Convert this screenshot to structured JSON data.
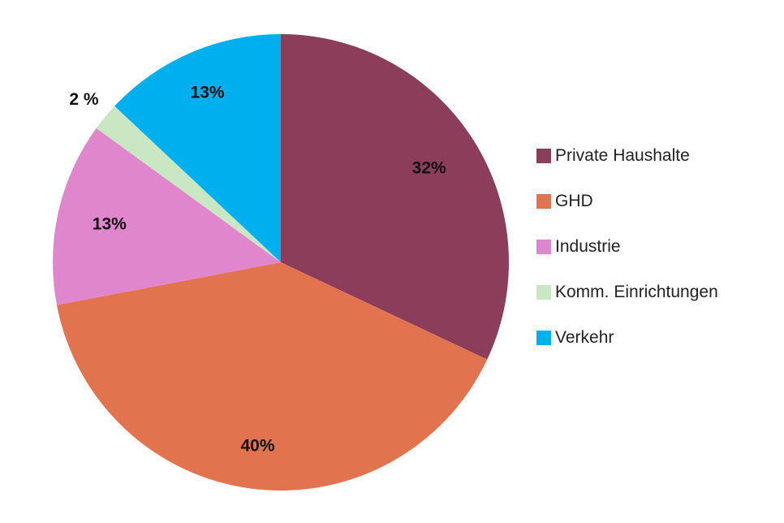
{
  "chart_data": {
    "type": "pie",
    "start_angle_deg": 0,
    "direction": "clockwise",
    "slices": [
      {
        "name": "Private Haushalte",
        "value": 32,
        "label": "32%",
        "color": "#8B3D5A"
      },
      {
        "name": "GHD",
        "value": 40,
        "label": "40%",
        "color": "#E2734F"
      },
      {
        "name": "Industrie",
        "value": 13,
        "label": "13%",
        "color": "#E086CC"
      },
      {
        "name": "Komm. Einrichtungen",
        "value": 2,
        "label": "2 %",
        "color": "#C9E7C2"
      },
      {
        "name": "Verkehr",
        "value": 13,
        "label": "13%",
        "color": "#00B0EE"
      }
    ],
    "legend": {
      "position": "right"
    }
  }
}
